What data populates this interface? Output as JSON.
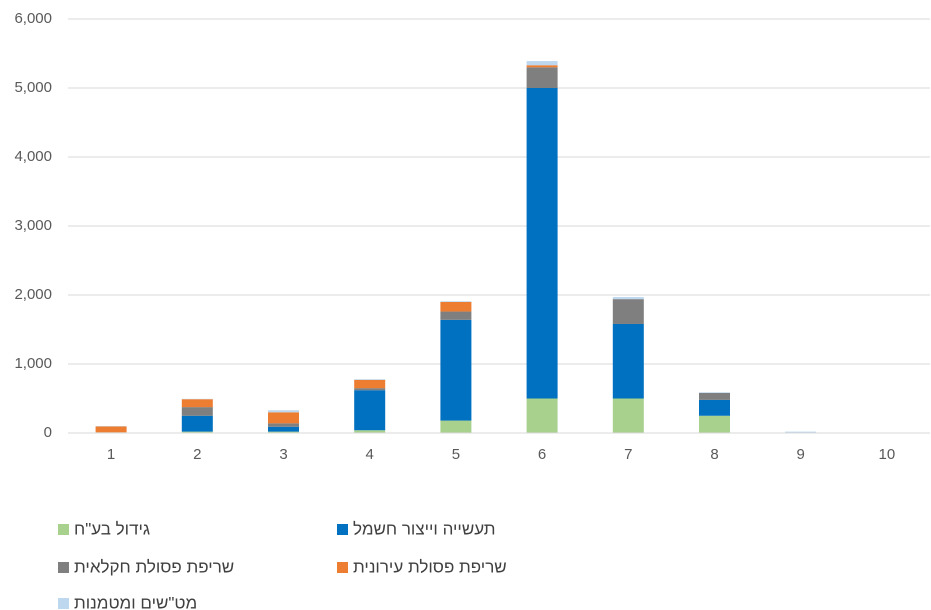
{
  "chart_data": {
    "type": "stacked_bar",
    "categories": [
      "1",
      "2",
      "3",
      "4",
      "5",
      "6",
      "7",
      "8",
      "9",
      "10"
    ],
    "series": [
      {
        "name": "גידול בע\"ח",
        "color": "#a9d18e",
        "values": [
          10,
          20,
          20,
          40,
          180,
          500,
          500,
          250,
          0,
          0
        ]
      },
      {
        "name": "תעשייה וייצור חשמל",
        "color": "#0070c0",
        "values": [
          0,
          230,
          70,
          580,
          1460,
          4500,
          1080,
          230,
          0,
          0
        ]
      },
      {
        "name": "שריפת פסולת חקלאית",
        "color": "#7f7f7f",
        "values": [
          0,
          125,
          50,
          30,
          120,
          300,
          360,
          100,
          0,
          0
        ]
      },
      {
        "name": "שריפת פסולת עירונית",
        "color": "#ed7d31",
        "values": [
          85,
          115,
          160,
          120,
          140,
          30,
          0,
          0,
          0,
          0
        ]
      },
      {
        "name": "מט\"שים ומטמנות",
        "color": "#bdd7ee",
        "values": [
          5,
          5,
          30,
          10,
          10,
          60,
          30,
          10,
          20,
          0
        ]
      }
    ],
    "ylim": [
      0,
      6000
    ],
    "yticks": [
      0,
      {
        "value": 1000,
        "label": "1,000"
      },
      {
        "value": 2000,
        "label": "2,000"
      },
      {
        "value": 3000,
        "label": "3,000"
      },
      {
        "value": 4000,
        "label": "4,000"
      },
      {
        "value": 5000,
        "label": "5,000"
      },
      {
        "value": 6000,
        "label": "6,000"
      }
    ],
    "grid": true
  }
}
